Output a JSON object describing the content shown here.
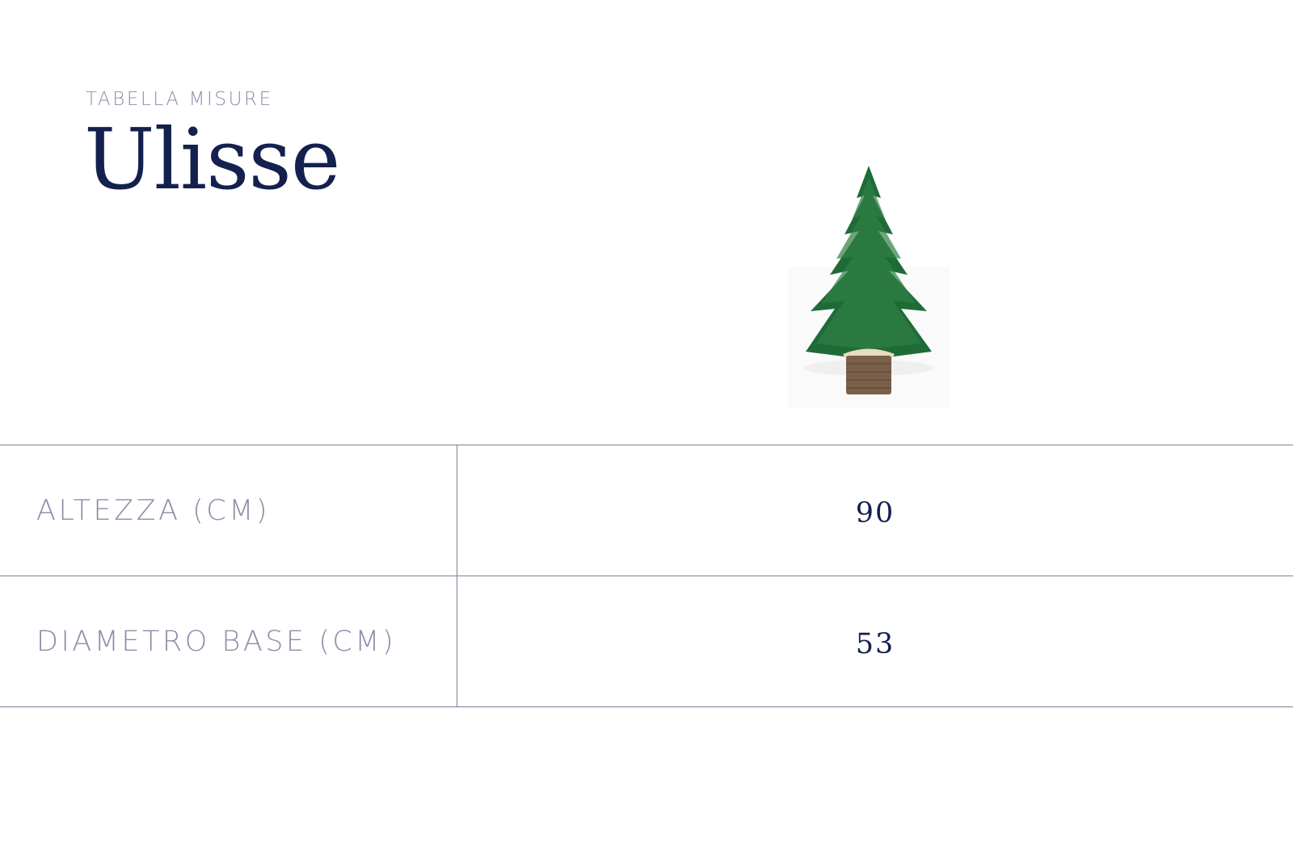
{
  "header": {
    "eyebrow": "TABELLA MISURE",
    "title": "Ulisse"
  },
  "product_image": {
    "description_icon": "christmas-tree-in-basket"
  },
  "table": {
    "rows": [
      {
        "label": "ALTEZZA (CM)",
        "value": "90"
      },
      {
        "label": "DIAMETRO BASE (CM)",
        "value": "53"
      }
    ]
  },
  "colors": {
    "navy": "#14204e",
    "muted": "#8a8fa8",
    "rule": "#7d8197"
  }
}
